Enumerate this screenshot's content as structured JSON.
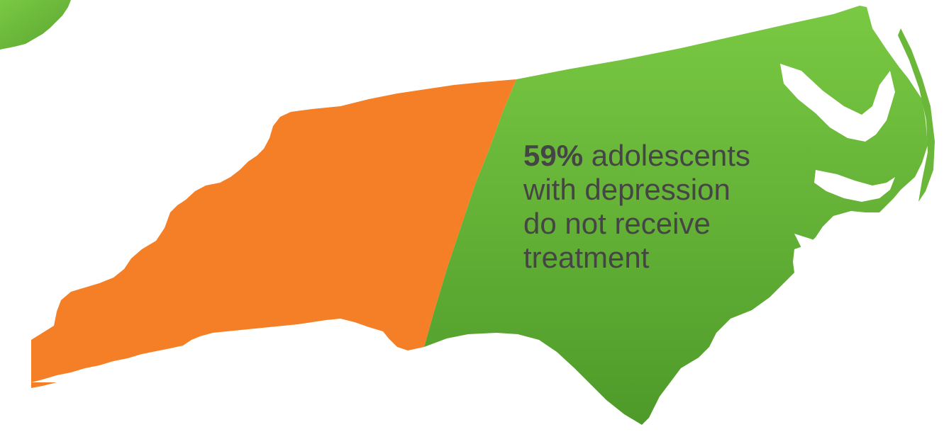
{
  "statistic": {
    "value": "59%",
    "line1_rest": " adolescents",
    "line2": "with depression",
    "line3": "do not receive",
    "line4": "treatment"
  },
  "map": {
    "region": "North Carolina",
    "shaded_share_percent": 59,
    "colors": {
      "orange_region": "#f57f26",
      "green_region_light": "#7ac943",
      "green_region_dark": "#4e9a2a",
      "text": "#454545",
      "background": "#ffffff"
    }
  }
}
